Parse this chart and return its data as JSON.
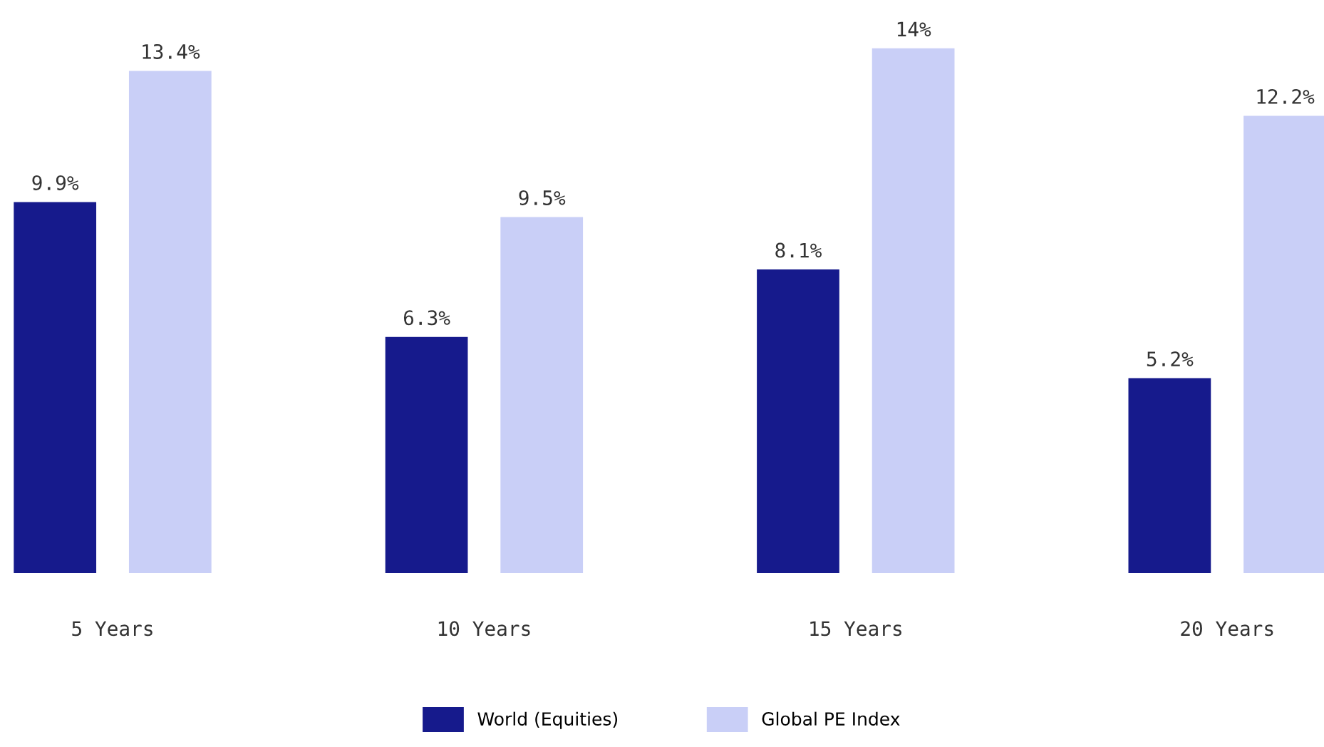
{
  "chart_data": {
    "type": "bar",
    "categories": [
      "5 Years",
      "10 Years",
      "15 Years",
      "20 Years"
    ],
    "series": [
      {
        "name": "World (Equities)",
        "color": "#161a8c",
        "values": [
          9.9,
          6.3,
          8.1,
          5.2
        ],
        "value_labels": [
          "9.9%",
          "6.3%",
          "8.1%",
          "5.2%"
        ]
      },
      {
        "name": "Global PE Index",
        "color": "#c9cff7",
        "values": [
          13.4,
          9.5,
          14,
          12.2
        ],
        "value_labels": [
          "13.4%",
          "9.5%",
          "14%",
          "12.2%"
        ]
      }
    ],
    "legend": "bottom",
    "grid": false
  }
}
